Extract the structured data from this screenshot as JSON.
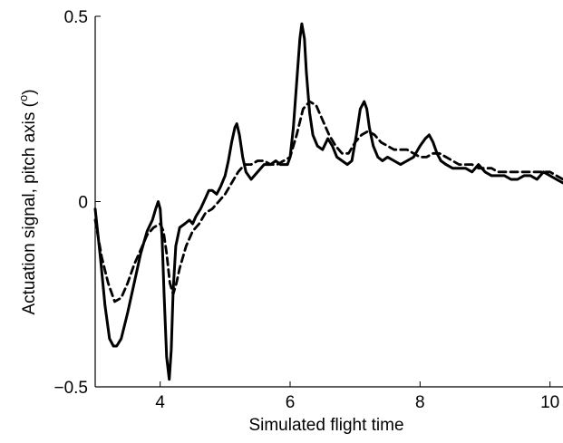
{
  "chart_data": {
    "type": "line",
    "xlabel": "Simulated flight time",
    "ylabel": "Actuation signal, pitch axis (",
    "ylabel_superscript": "o",
    "ylabel_suffix": ")",
    "xlim": [
      3,
      10.2
    ],
    "ylim": [
      -0.5,
      0.5
    ],
    "xticks": [
      4,
      6,
      8,
      10
    ],
    "yticks": [
      -0.5,
      0,
      0.5
    ],
    "xtick_labels": [
      "4",
      "6",
      "8",
      "10"
    ],
    "ytick_labels": [
      "−0.5",
      "0",
      "0.5"
    ],
    "grid": false,
    "series": [
      {
        "style": "solid",
        "color": "#000000",
        "x": [
          3.0,
          3.08,
          3.15,
          3.22,
          3.28,
          3.33,
          3.4,
          3.5,
          3.6,
          3.7,
          3.8,
          3.88,
          3.93,
          3.97,
          4.0,
          4.03,
          4.06,
          4.1,
          4.14,
          4.17,
          4.2,
          4.24,
          4.3,
          4.38,
          4.45,
          4.5,
          4.55,
          4.62,
          4.7,
          4.75,
          4.8,
          4.87,
          4.93,
          5.0,
          5.05,
          5.1,
          5.15,
          5.18,
          5.22,
          5.27,
          5.32,
          5.4,
          5.5,
          5.6,
          5.7,
          5.78,
          5.85,
          5.92,
          5.96,
          6.0,
          6.05,
          6.1,
          6.15,
          6.18,
          6.22,
          6.25,
          6.3,
          6.35,
          6.42,
          6.5,
          6.58,
          6.65,
          6.72,
          6.8,
          6.88,
          6.95,
          7.02,
          7.08,
          7.14,
          7.18,
          7.22,
          7.28,
          7.35,
          7.42,
          7.5,
          7.6,
          7.7,
          7.8,
          7.9,
          8.0,
          8.08,
          8.14,
          8.2,
          8.26,
          8.32,
          8.4,
          8.5,
          8.6,
          8.7,
          8.8,
          8.9,
          9.0,
          9.1,
          9.2,
          9.3,
          9.4,
          9.5,
          9.6,
          9.7,
          9.8,
          9.9,
          10.0,
          10.1,
          10.2
        ],
        "y": [
          -0.02,
          -0.15,
          -0.28,
          -0.37,
          -0.39,
          -0.39,
          -0.37,
          -0.3,
          -0.22,
          -0.14,
          -0.08,
          -0.05,
          -0.02,
          0.0,
          -0.02,
          -0.1,
          -0.25,
          -0.42,
          -0.48,
          -0.4,
          -0.24,
          -0.12,
          -0.07,
          -0.06,
          -0.05,
          -0.06,
          -0.04,
          -0.02,
          0.01,
          0.03,
          0.03,
          0.02,
          0.04,
          0.07,
          0.11,
          0.16,
          0.2,
          0.21,
          0.18,
          0.12,
          0.08,
          0.06,
          0.08,
          0.1,
          0.1,
          0.11,
          0.1,
          0.1,
          0.1,
          0.12,
          0.2,
          0.32,
          0.44,
          0.48,
          0.44,
          0.35,
          0.24,
          0.18,
          0.15,
          0.14,
          0.17,
          0.15,
          0.12,
          0.11,
          0.1,
          0.11,
          0.18,
          0.25,
          0.27,
          0.25,
          0.2,
          0.15,
          0.12,
          0.11,
          0.12,
          0.11,
          0.1,
          0.11,
          0.12,
          0.15,
          0.17,
          0.18,
          0.16,
          0.13,
          0.11,
          0.1,
          0.09,
          0.09,
          0.09,
          0.08,
          0.1,
          0.08,
          0.07,
          0.07,
          0.07,
          0.06,
          0.06,
          0.07,
          0.07,
          0.06,
          0.08,
          0.07,
          0.06,
          0.05
        ]
      },
      {
        "style": "dashed",
        "color": "#000000",
        "x": [
          3.0,
          3.1,
          3.2,
          3.3,
          3.4,
          3.5,
          3.6,
          3.7,
          3.8,
          3.9,
          4.0,
          4.05,
          4.1,
          4.15,
          4.2,
          4.25,
          4.3,
          4.4,
          4.5,
          4.6,
          4.7,
          4.8,
          4.9,
          5.0,
          5.1,
          5.2,
          5.3,
          5.4,
          5.5,
          5.6,
          5.7,
          5.8,
          5.9,
          6.0,
          6.1,
          6.2,
          6.3,
          6.4,
          6.5,
          6.6,
          6.7,
          6.8,
          6.9,
          7.0,
          7.1,
          7.2,
          7.3,
          7.4,
          7.5,
          7.6,
          7.7,
          7.8,
          7.9,
          8.0,
          8.1,
          8.2,
          8.3,
          8.4,
          8.5,
          8.6,
          8.7,
          8.8,
          8.9,
          9.0,
          9.1,
          9.2,
          9.3,
          9.4,
          9.5,
          9.6,
          9.7,
          9.8,
          9.9,
          10.0,
          10.1,
          10.2
        ],
        "y": [
          -0.05,
          -0.15,
          -0.22,
          -0.27,
          -0.26,
          -0.22,
          -0.17,
          -0.13,
          -0.09,
          -0.07,
          -0.06,
          -0.08,
          -0.14,
          -0.22,
          -0.25,
          -0.22,
          -0.18,
          -0.12,
          -0.08,
          -0.06,
          -0.03,
          -0.02,
          0.0,
          0.02,
          0.05,
          0.08,
          0.1,
          0.1,
          0.11,
          0.11,
          0.1,
          0.1,
          0.11,
          0.12,
          0.18,
          0.25,
          0.27,
          0.26,
          0.22,
          0.18,
          0.15,
          0.13,
          0.13,
          0.16,
          0.18,
          0.19,
          0.18,
          0.16,
          0.15,
          0.14,
          0.14,
          0.14,
          0.13,
          0.12,
          0.12,
          0.13,
          0.13,
          0.12,
          0.11,
          0.1,
          0.1,
          0.1,
          0.09,
          0.09,
          0.09,
          0.08,
          0.08,
          0.08,
          0.08,
          0.08,
          0.08,
          0.08,
          0.08,
          0.08,
          0.07,
          0.06
        ]
      }
    ]
  }
}
